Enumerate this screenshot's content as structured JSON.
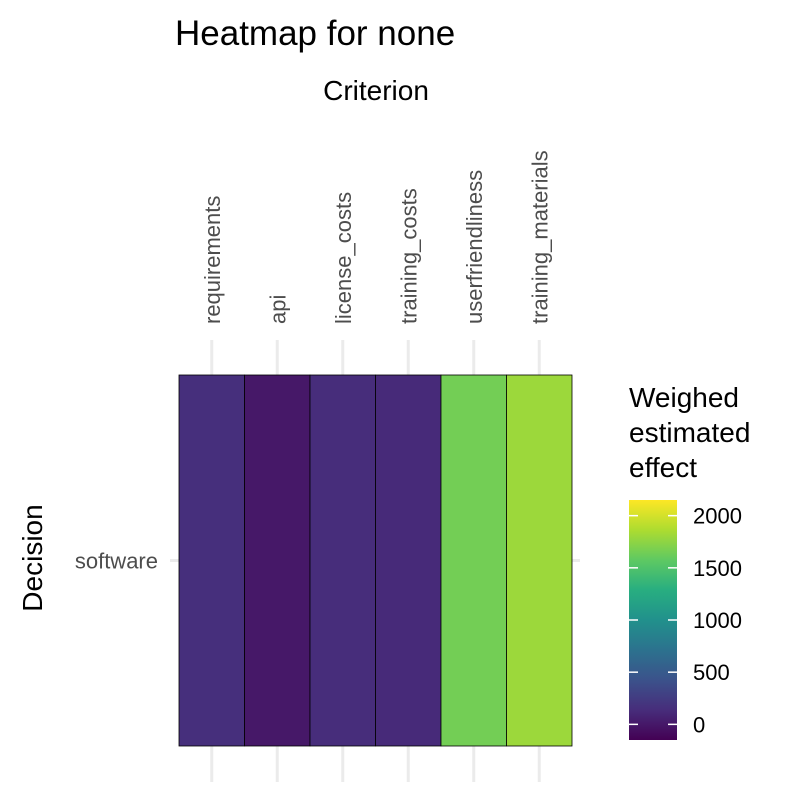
{
  "chart_data": {
    "type": "heatmap",
    "title": "Heatmap for none",
    "xlabel": "Criterion",
    "ylabel": "Decision",
    "x": [
      "requirements",
      "api",
      "license_costs",
      "training_costs",
      "userfriendliness",
      "training_materials"
    ],
    "y": [
      "software"
    ],
    "values": [
      [
        150,
        0,
        140,
        120,
        1650,
        1800
      ]
    ],
    "legend": {
      "title_lines": [
        "Weighed",
        "estimated",
        "effect"
      ],
      "ticks": [
        0,
        500,
        1000,
        1500,
        2000
      ],
      "range": [
        -150,
        2150
      ],
      "colormap": "viridis",
      "placement": "right"
    },
    "x_axis_position": "top",
    "grid": true
  }
}
